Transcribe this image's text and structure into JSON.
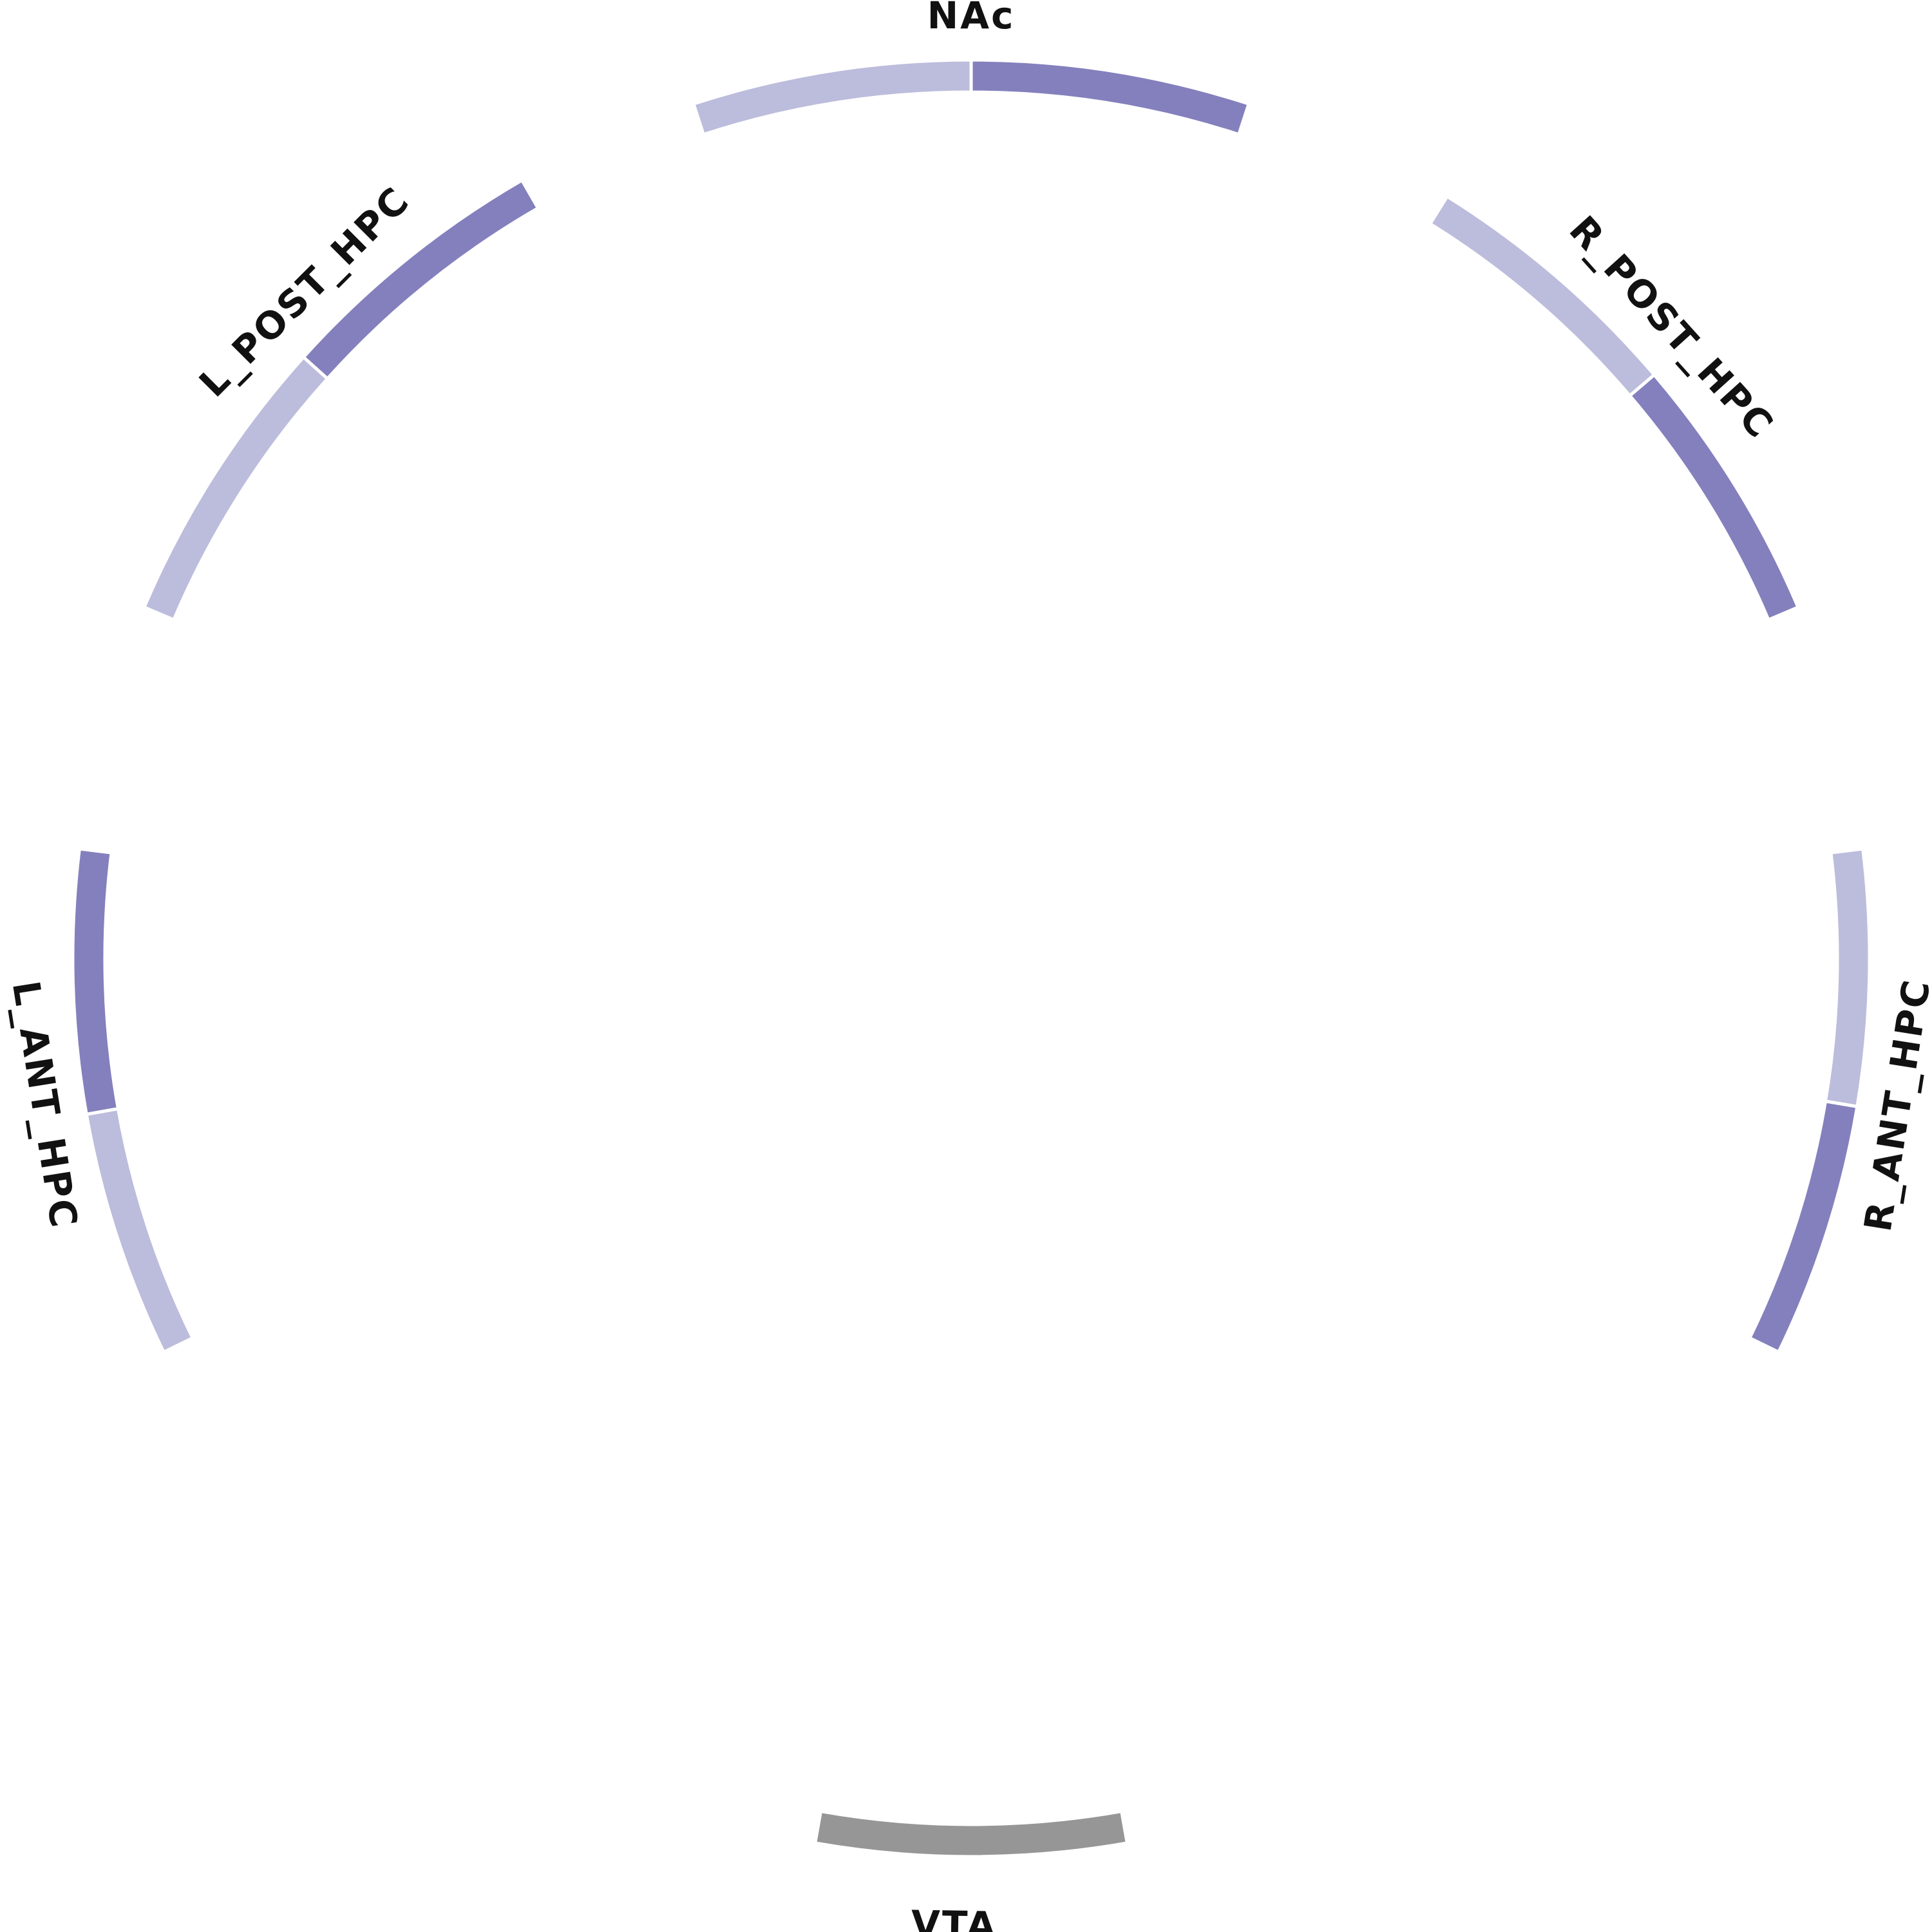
{
  "diagram": {
    "type": "circular-node-ring",
    "colors": {
      "dark": "#8480bd",
      "light": "#bcbcdc",
      "gray": "#969696",
      "label": "#111111"
    },
    "nodes": [
      {
        "id": "nac",
        "label": "NAc",
        "segments": [
          {
            "shade": "light"
          },
          {
            "shade": "dark"
          }
        ]
      },
      {
        "id": "r-post-hpc",
        "label": "R_POST_HPC",
        "segments": [
          {
            "shade": "light"
          },
          {
            "shade": "dark"
          }
        ]
      },
      {
        "id": "r-ant-hpc",
        "label": "R_ANT_HPC",
        "segments": [
          {
            "shade": "light"
          },
          {
            "shade": "dark"
          }
        ]
      },
      {
        "id": "vta",
        "label": "VTA",
        "segments": [
          {
            "shade": "gray"
          }
        ]
      },
      {
        "id": "l-ant-hpc",
        "label": "L_ANT_HPC",
        "segments": [
          {
            "shade": "light"
          },
          {
            "shade": "dark"
          }
        ]
      },
      {
        "id": "l-post-hpc",
        "label": "L_POST_HPC",
        "segments": [
          {
            "shade": "light"
          },
          {
            "shade": "dark"
          }
        ]
      }
    ]
  }
}
